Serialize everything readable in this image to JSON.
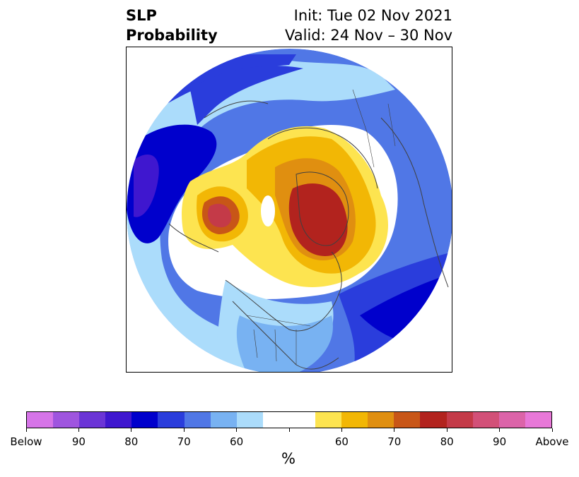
{
  "header": {
    "title_line1": "SLP",
    "title_line2": "Probability",
    "init": "Init: Tue 02 Nov 2021",
    "valid": "Valid: 24 Nov – 30 Nov"
  },
  "map": {
    "projection": "north-polar-stereographic",
    "field": "SLP probability",
    "features": [
      "coastlines",
      "country-borders",
      "state-borders"
    ]
  },
  "colorbar": {
    "unit": "%",
    "colors": [
      "#d674e8",
      "#9f55df",
      "#6b35d6",
      "#3f17cf",
      "#0000cc",
      "#2a3ddc",
      "#5077e6",
      "#78b2f2",
      "#abdcfb",
      "#ffffff",
      "#ffffff",
      "#fde450",
      "#f2b705",
      "#e08f10",
      "#c85617",
      "#b2231e",
      "#c43a48",
      "#d25078",
      "#dc64a9",
      "#e878d8"
    ],
    "tick_labels": [
      "Below",
      "90",
      "80",
      "70",
      "60",
      "",
      "60",
      "70",
      "80",
      "90",
      "Above"
    ]
  }
}
